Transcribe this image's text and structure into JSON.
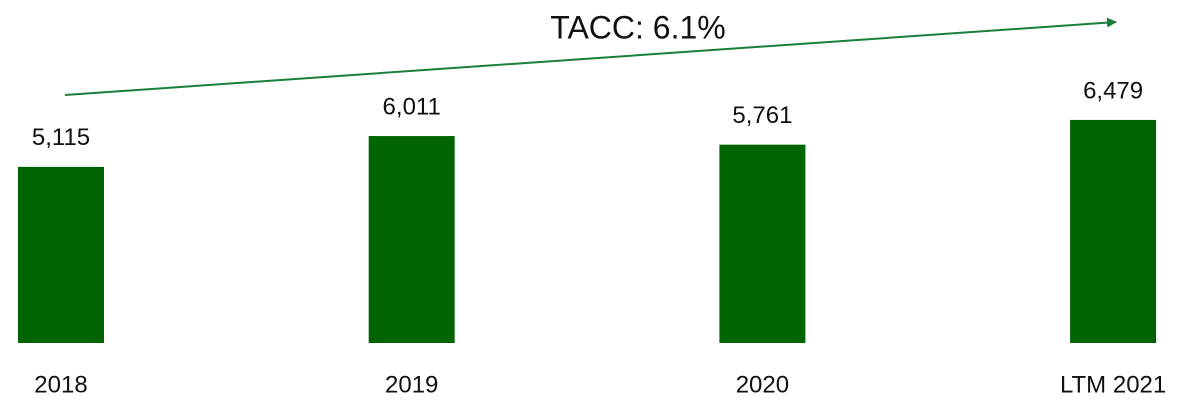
{
  "chart_data": {
    "type": "bar",
    "annotation": "TACC: 6.1%",
    "categories": [
      "2018",
      "2019",
      "2020",
      "LTM 2021"
    ],
    "values": [
      5115,
      6011,
      5761,
      6479
    ],
    "value_labels": [
      "5,115",
      "6,011",
      "5,761",
      "6,479"
    ],
    "color": "#006400",
    "ylim": [
      0,
      7000
    ]
  }
}
